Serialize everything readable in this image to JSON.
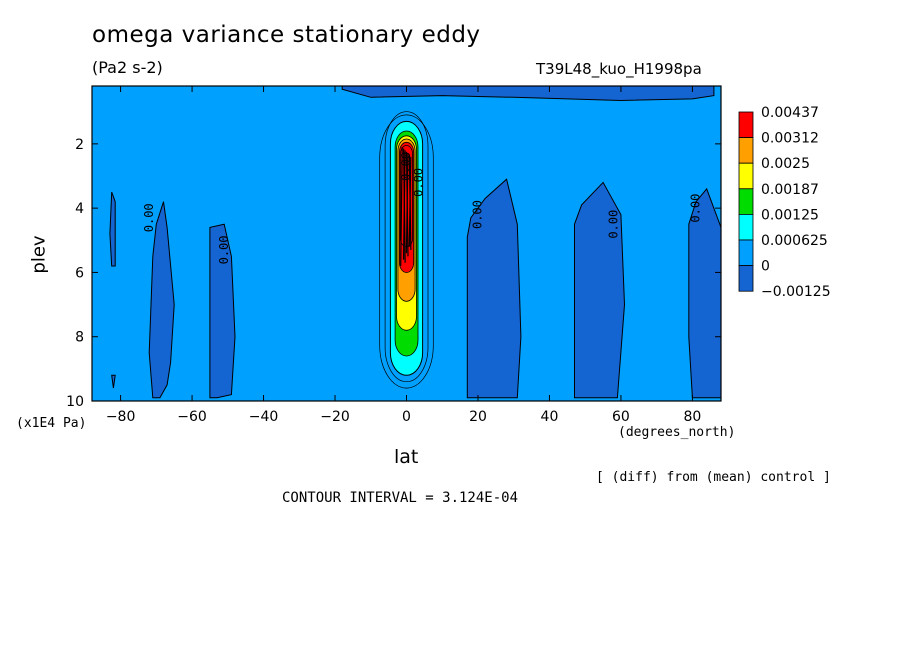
{
  "header": {
    "title": "omega variance stationary eddy",
    "units": "(Pa2 s-2)",
    "dataset": "T39L48_kuo_H1998pa"
  },
  "footer": {
    "diff_note": "[ (diff) from (mean) control ]",
    "contour_interval": "CONTOUR INTERVAL = 3.124E-04"
  },
  "chart_data": {
    "type": "contour",
    "title": "omega variance stationary eddy",
    "subtitle": "(Pa2 s-2)",
    "xlabel": "lat",
    "xunits": "(degrees_north)",
    "ylabel": "plev",
    "yunits": "(x1E4 Pa)",
    "xlim": [
      -88,
      88
    ],
    "ylim": [
      10,
      0.2
    ],
    "x_ticks": [
      -80,
      -60,
      -40,
      -20,
      0,
      20,
      40,
      60,
      80
    ],
    "y_ticks": [
      2,
      4,
      6,
      8,
      10
    ],
    "levels": [
      -0.00125,
      0,
      0.000625,
      0.00125,
      0.00187,
      0.0025,
      0.00312,
      0.00437
    ],
    "level_labels": [
      "-0.00125",
      "0",
      "0.000625",
      "0.00125",
      "0.00187",
      "0.0025",
      "0.00312",
      "0.00437"
    ],
    "level_colors": [
      "#1464d2",
      "#00a0ff",
      "#00ffff",
      "#00dc00",
      "#ffff00",
      "#ffa000",
      "#ff0000",
      "#ff0000"
    ],
    "background_level_color": "#00a0ff",
    "negative_region_color": "#1464d2",
    "contour_label_text": "0.00",
    "negative_regions": [
      {
        "name": "tongue-82S",
        "points": [
          [
            -82.5,
            3.5
          ],
          [
            -81.5,
            3.8
          ],
          [
            -81.5,
            5.8
          ],
          [
            -82.5,
            5.8
          ],
          [
            -83,
            4.8
          ]
        ]
      },
      {
        "name": "dot-82S",
        "points": [
          [
            -82.5,
            9.2
          ],
          [
            -81.5,
            9.2
          ],
          [
            -82,
            9.6
          ]
        ]
      },
      {
        "name": "tongue-70S",
        "points": [
          [
            -71,
            5.5
          ],
          [
            -70,
            4.5
          ],
          [
            -68,
            3.8
          ],
          [
            -67,
            4.6
          ],
          [
            -65,
            7.0
          ],
          [
            -66,
            8.8
          ],
          [
            -67,
            9.5
          ],
          [
            -69,
            9.9
          ],
          [
            -71,
            9.9
          ],
          [
            -72,
            8.5
          ]
        ]
      },
      {
        "name": "tongue-52S",
        "points": [
          [
            -55,
            5.5
          ],
          [
            -55,
            4.6
          ],
          [
            -51,
            4.5
          ],
          [
            -49,
            5.5
          ],
          [
            -48,
            8.0
          ],
          [
            -49,
            9.8
          ],
          [
            -53,
            9.9
          ],
          [
            -55,
            9.9
          ]
        ]
      },
      {
        "name": "tongue-22N",
        "points": [
          [
            17,
            4.9
          ],
          [
            18,
            4.3
          ],
          [
            22,
            3.7
          ],
          [
            28,
            3.1
          ],
          [
            31,
            4.5
          ],
          [
            32,
            8.0
          ],
          [
            31,
            9.9
          ],
          [
            17,
            9.9
          ]
        ]
      },
      {
        "name": "tongue-55N",
        "points": [
          [
            47,
            4.5
          ],
          [
            49,
            3.9
          ],
          [
            55,
            3.2
          ],
          [
            60,
            4.2
          ],
          [
            61,
            7.0
          ],
          [
            59,
            9.9
          ],
          [
            47,
            9.9
          ]
        ]
      },
      {
        "name": "tongue-85N",
        "points": [
          [
            79,
            4.5
          ],
          [
            81,
            3.8
          ],
          [
            84,
            3.4
          ],
          [
            88,
            4.6
          ],
          [
            88,
            9.9
          ],
          [
            80,
            9.9
          ],
          [
            79,
            8.0
          ]
        ]
      },
      {
        "name": "top-band",
        "points": [
          [
            -18,
            0.2
          ],
          [
            86,
            0.2
          ],
          [
            86,
            0.5
          ],
          [
            80,
            0.6
          ],
          [
            60,
            0.65
          ],
          [
            30,
            0.55
          ],
          [
            10,
            0.5
          ],
          [
            -10,
            0.55
          ],
          [
            -18,
            0.3
          ]
        ]
      }
    ],
    "core_bands": [
      {
        "level": 0.000625,
        "lat_halfwidth": 4.5,
        "plev_top": 1.3,
        "plev_bottom": 9.2
      },
      {
        "level": 0.00125,
        "lat_halfwidth": 3.2,
        "plev_top": 1.6,
        "plev_bottom": 8.6
      },
      {
        "level": 0.00187,
        "lat_halfwidth": 2.8,
        "plev_top": 1.75,
        "plev_bottom": 7.8
      },
      {
        "level": 0.0025,
        "lat_halfwidth": 2.4,
        "plev_top": 1.85,
        "plev_bottom": 6.9
      },
      {
        "level": 0.00312,
        "lat_halfwidth": 2.0,
        "plev_top": 1.95,
        "plev_bottom": 6.0
      },
      {
        "level": 0.00437,
        "lat_halfwidth": 1.7,
        "plev_top": 2.05,
        "plev_bottom": 5.2
      }
    ],
    "contour_labels": [
      {
        "lat": -71,
        "plev": 4.3
      },
      {
        "lat": -50,
        "plev": 5.3
      },
      {
        "lat": 21,
        "plev": 4.2
      },
      {
        "lat": 59,
        "plev": 4.5
      },
      {
        "lat": 82,
        "plev": 4.0
      },
      {
        "lat": 1,
        "plev": 2.7
      },
      {
        "lat": 4.5,
        "plev": 3.2
      }
    ]
  }
}
